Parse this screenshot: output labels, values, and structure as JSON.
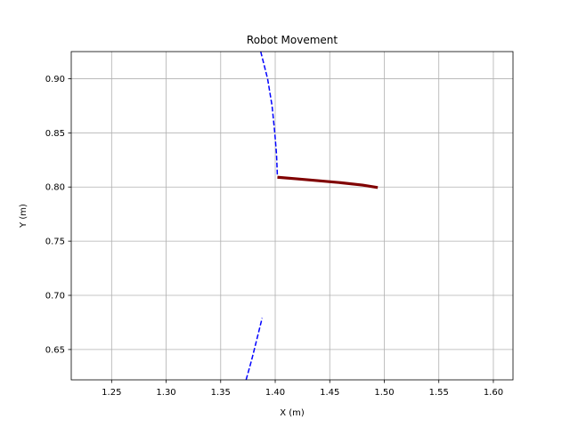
{
  "chart_data": {
    "type": "line",
    "title": "Robot Movement",
    "xlabel": "X (m)",
    "ylabel": "Y (m)",
    "xlim": [
      1.213,
      1.618
    ],
    "ylim": [
      0.622,
      0.925
    ],
    "grid": true,
    "x_ticks": [
      1.25,
      1.3,
      1.35,
      1.4,
      1.45,
      1.5,
      1.55,
      1.6
    ],
    "x_tick_labels": [
      "1.25",
      "1.30",
      "1.35",
      "1.40",
      "1.45",
      "1.50",
      "1.55",
      "1.60"
    ],
    "y_ticks": [
      0.65,
      0.7,
      0.75,
      0.8,
      0.85,
      0.9
    ],
    "y_tick_labels": [
      "0.65",
      "0.70",
      "0.75",
      "0.80",
      "0.85",
      "0.90"
    ],
    "series": [
      {
        "style": "dashed",
        "color": "#0000ff",
        "points": [
          [
            1.3867,
            0.925
          ],
          [
            1.393,
            0.9
          ],
          [
            1.3971,
            0.875
          ],
          [
            1.3996,
            0.85
          ],
          [
            1.4012,
            0.83
          ],
          [
            1.402,
            0.81
          ]
        ]
      },
      {
        "style": "dashed",
        "color": "#0000ff",
        "points": [
          [
            1.3733,
            0.622
          ],
          [
            1.3783,
            0.64
          ],
          [
            1.3833,
            0.66
          ],
          [
            1.388,
            0.679
          ]
        ]
      },
      {
        "style": "solid",
        "color": "#800000",
        "points": [
          [
            1.402,
            0.809
          ],
          [
            1.42,
            0.8075
          ],
          [
            1.44,
            0.8058
          ],
          [
            1.46,
            0.804
          ],
          [
            1.48,
            0.8018
          ],
          [
            1.494,
            0.7995
          ]
        ]
      }
    ]
  }
}
